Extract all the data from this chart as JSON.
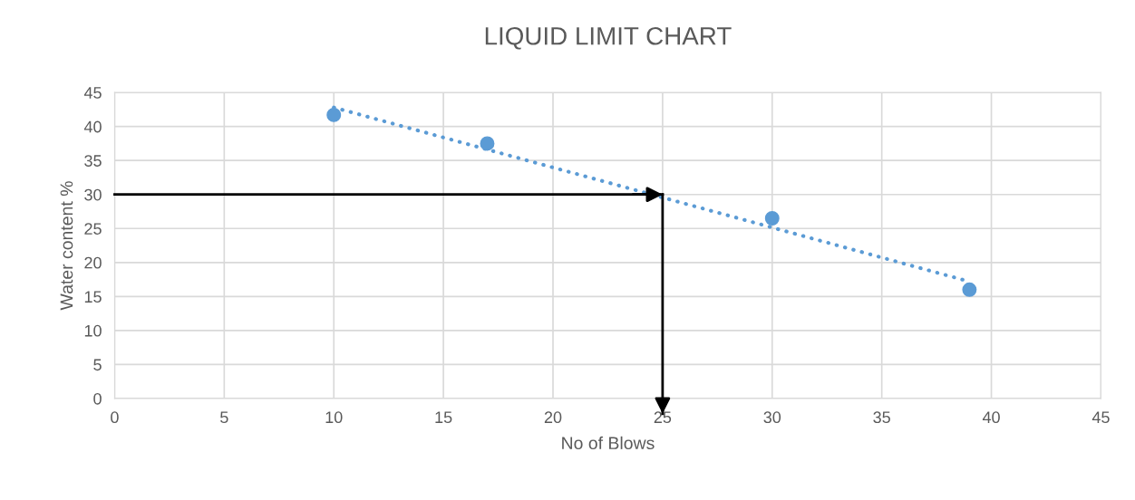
{
  "chart_data": {
    "type": "scatter",
    "title": "LIQUID LIMIT CHART",
    "xlabel": "No of Blows",
    "ylabel": "Water content %",
    "series": [
      {
        "color": "#5b9bd5",
        "x": [
          10,
          17,
          30,
          39
        ],
        "values": [
          41.7,
          37.5,
          26.5,
          16
        ],
        "marker": "circle"
      },
      {
        "type": "line",
        "color": "#5b9bd5",
        "x": [
          10,
          39
        ],
        "values": [
          42.8,
          17.2
        ],
        "line_style": "dotted",
        "marker": "none"
      }
    ],
    "ref_lines": [
      {
        "axis": "y",
        "value": 30,
        "color": "#000000"
      },
      {
        "axis": "x",
        "value": 25,
        "color": "#000000"
      }
    ],
    "xlim": [
      0,
      45
    ],
    "xticks": [
      0,
      5,
      10,
      15,
      20,
      25,
      30,
      35,
      40,
      45
    ],
    "ylim": [
      0,
      45
    ],
    "yticks": [
      0,
      5,
      10,
      15,
      20,
      25,
      30,
      35,
      40,
      45
    ],
    "grid": true
  }
}
